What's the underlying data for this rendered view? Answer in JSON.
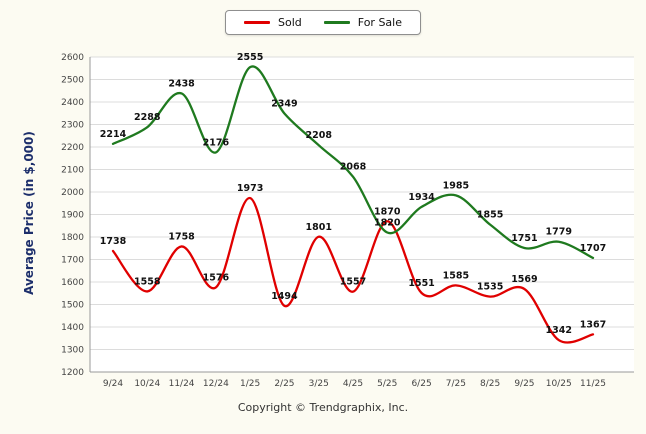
{
  "footer": {
    "copyright": "Copyright © Trendgraphix, Inc."
  },
  "chart_data": {
    "type": "line",
    "title": "",
    "xlabel": "",
    "ylabel": "Average Price (in $,000)",
    "ylim": [
      1200,
      2600
    ],
    "y_ticks": [
      1200,
      1300,
      1400,
      1500,
      1600,
      1700,
      1800,
      1900,
      2000,
      2100,
      2200,
      2300,
      2400,
      2500,
      2600
    ],
    "grid": true,
    "legend_position": "top-center",
    "axis_title_color": "#1c2e6b",
    "categories": [
      "9/24",
      "10/24",
      "11/24",
      "12/24",
      "1/25",
      "2/25",
      "3/25",
      "4/25",
      "5/25",
      "6/25",
      "7/25",
      "8/25",
      "9/25",
      "10/25",
      "11/25"
    ],
    "series": [
      {
        "name": "Sold",
        "color": "#e00000",
        "values": [
          1738,
          1558,
          1758,
          1576,
          1973,
          1494,
          1801,
          1557,
          1870,
          1551,
          1585,
          1535,
          1569,
          1342,
          1367
        ]
      },
      {
        "name": "For Sale",
        "color": "#1f7a1f",
        "values": [
          2214,
          2288,
          2438,
          2176,
          2555,
          2349,
          2208,
          2068,
          1820,
          1934,
          1985,
          1855,
          1751,
          1779,
          1707
        ]
      }
    ]
  }
}
